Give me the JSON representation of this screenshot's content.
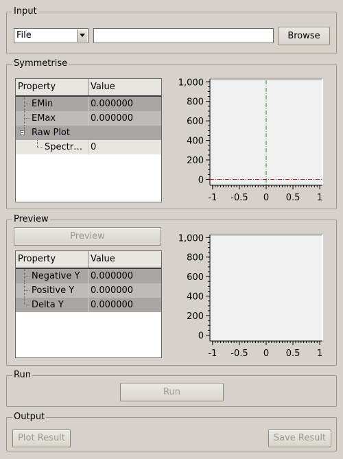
{
  "input": {
    "title": "Input",
    "source_select": "File",
    "file_path": "",
    "browse_label": "Browse"
  },
  "symmetrise": {
    "title": "Symmetrise",
    "table": {
      "headers": [
        "Property",
        "Value"
      ],
      "rows": [
        {
          "name": "EMin",
          "value": "0.000000"
        },
        {
          "name": "EMax",
          "value": "0.000000"
        },
        {
          "name": "Raw Plot",
          "value": ""
        },
        {
          "name": "Spectr…",
          "value": "0"
        }
      ]
    }
  },
  "preview": {
    "title": "Preview",
    "preview_button": "Preview",
    "table": {
      "headers": [
        "Property",
        "Value"
      ],
      "rows": [
        {
          "name": "Negative Y",
          "value": "0.000000"
        },
        {
          "name": "Positive Y",
          "value": "0.000000"
        },
        {
          "name": "Delta Y",
          "value": "0.000000"
        }
      ]
    }
  },
  "run": {
    "title": "Run",
    "run_button": "Run"
  },
  "output": {
    "title": "Output",
    "plot_result": "Plot Result",
    "save_result": "Save Result"
  },
  "chart_data": [
    {
      "type": "line",
      "x_ticks": [
        "-1",
        "-0.5",
        "0",
        "0.5",
        "1"
      ],
      "y_ticks": [
        "0",
        "200",
        "400",
        "600",
        "800",
        "1,000"
      ],
      "xlim": [
        -1.05,
        1.05
      ],
      "ylim": [
        -60,
        1030
      ],
      "series": [],
      "markers": {
        "vertical_x": 0,
        "horizontal_y": 0
      }
    },
    {
      "type": "line",
      "x_ticks": [
        "-1",
        "-0.5",
        "0",
        "0.5",
        "1"
      ],
      "y_ticks": [
        "0",
        "200",
        "400",
        "600",
        "800",
        "1,000"
      ],
      "xlim": [
        -1.05,
        1.05
      ],
      "ylim": [
        -60,
        1030
      ],
      "series": []
    }
  ]
}
